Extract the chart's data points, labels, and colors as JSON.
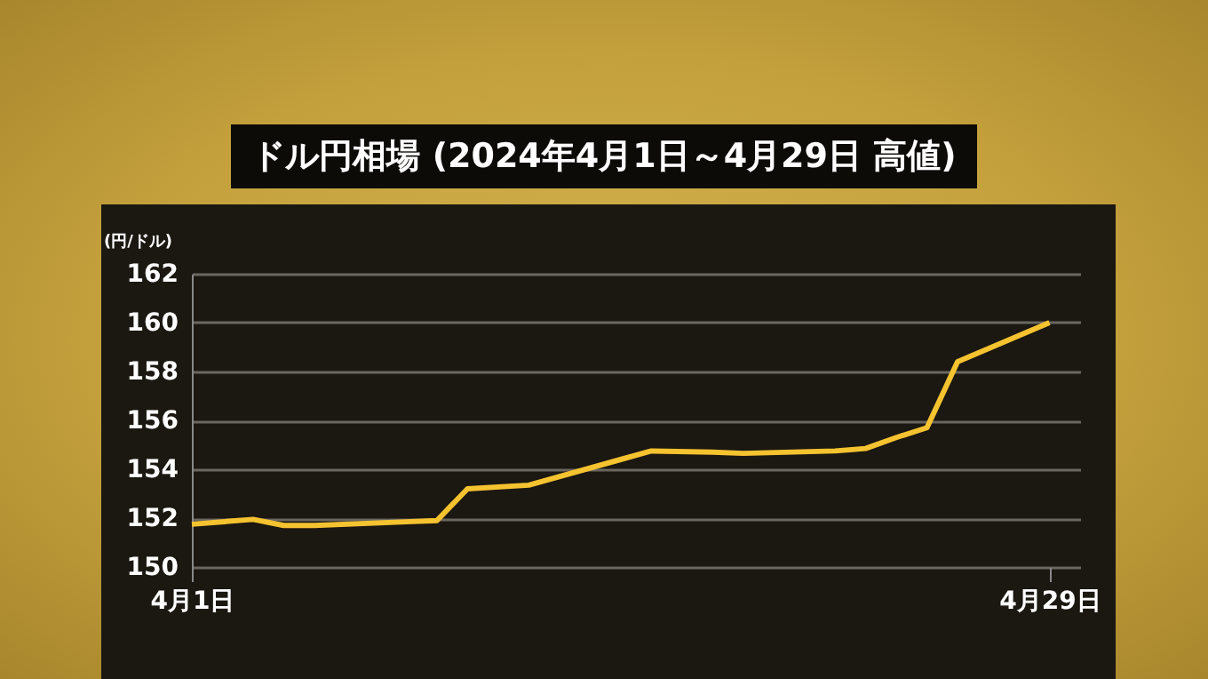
{
  "chart_data": {
    "type": "line",
    "title": "ドル円相場 (2024年4月1日～4月29日 高値)",
    "ylabel": "(円/ドル)",
    "x": [
      "2024-04-01",
      "2024-04-03",
      "2024-04-04",
      "2024-04-05",
      "2024-04-08",
      "2024-04-09",
      "2024-04-10",
      "2024-04-12",
      "2024-04-15",
      "2024-04-16",
      "2024-04-18",
      "2024-04-19",
      "2024-04-22",
      "2024-04-23",
      "2024-04-24",
      "2024-04-25",
      "2024-04-26",
      "2024-04-29"
    ],
    "series": [
      {
        "color": "#f5c230",
        "values": [
          151.75,
          151.95,
          151.7,
          151.7,
          151.85,
          151.9,
          153.2,
          153.35,
          154.4,
          154.75,
          154.7,
          154.65,
          154.75,
          154.85,
          155.3,
          155.7,
          158.4,
          160.0
        ]
      }
    ],
    "xlim": [
      "2024-04-01",
      "2024-04-30"
    ],
    "xticks": [
      {
        "value": "2024-04-01",
        "label": "4月1日"
      },
      {
        "value": "2024-04-29",
        "label": "4月29日"
      }
    ],
    "ylim": [
      150,
      162
    ],
    "yticks": [
      150,
      152,
      154,
      156,
      158,
      160,
      162
    ],
    "grid": "y",
    "marker": "none",
    "line_style": "solid"
  }
}
